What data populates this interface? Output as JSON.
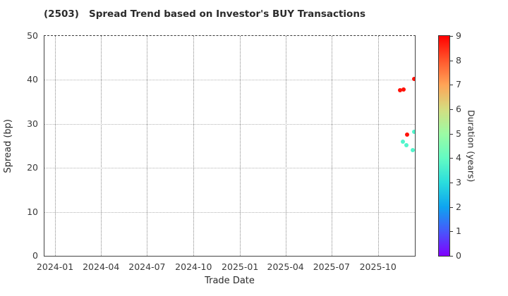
{
  "title": "(2503)   Spread Trend based on Investor's BUY Transactions",
  "chart_data": {
    "type": "scatter",
    "title": "(2503)   Spread Trend based on Investor's BUY Transactions",
    "xlabel": "Trade Date",
    "ylabel": "Spread (bp)",
    "ylim": [
      0,
      50
    ],
    "yticks": [
      0,
      10,
      20,
      30,
      40,
      50
    ],
    "xtick_labels": [
      "2024-01",
      "2024-04",
      "2024-07",
      "2024-10",
      "2025-01",
      "2025-04",
      "2025-07",
      "2025-10"
    ],
    "xtick_dates": [
      "2024-01-01",
      "2024-04-01",
      "2024-07-01",
      "2024-10-01",
      "2025-01-01",
      "2025-04-01",
      "2025-07-01",
      "2025-10-01"
    ],
    "x_range": [
      "2023-12-11",
      "2025-12-13"
    ],
    "grid": true,
    "legend_position": "none",
    "colorbar": {
      "label": "Duration (years)",
      "min": 0,
      "max": 9,
      "ticks": [
        0,
        1,
        2,
        3,
        4,
        5,
        6,
        7,
        8,
        9
      ],
      "colormap": "rainbow",
      "gradient_stops": [
        "#8000FF",
        "#4757FB",
        "#0EA4F0",
        "#2ADDDD",
        "#63FBC3",
        "#9CFBA4",
        "#D4DD80",
        "#FFA457",
        "#FF572C",
        "#FF0000"
      ]
    },
    "points": [
      {
        "date": "2025-12-11",
        "spread": 40.3,
        "duration": 8.8
      },
      {
        "date": "2025-11-14",
        "spread": 37.7,
        "duration": 8.8
      },
      {
        "date": "2025-11-21",
        "spread": 37.9,
        "duration": 8.8
      },
      {
        "date": "2025-11-28",
        "spread": 27.6,
        "duration": 8.8
      },
      {
        "date": "2025-12-12",
        "spread": 28.2,
        "duration": 3.7
      },
      {
        "date": "2025-11-19",
        "spread": 26.0,
        "duration": 3.7
      },
      {
        "date": "2025-11-26",
        "spread": 25.1,
        "duration": 3.7
      },
      {
        "date": "2025-12-09",
        "spread": 24.1,
        "duration": 3.7
      }
    ]
  }
}
